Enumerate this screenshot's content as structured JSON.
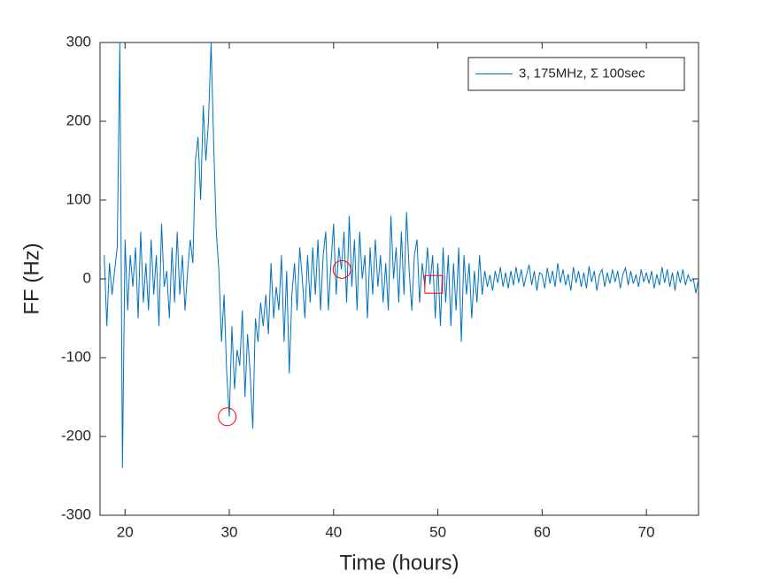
{
  "chart_data": {
    "type": "line",
    "xlabel": "Time (hours)",
    "ylabel": "FF (Hz)",
    "xlim": [
      17.6,
      75
    ],
    "ylim": [
      -300,
      300
    ],
    "xticks": [
      20,
      30,
      40,
      50,
      60,
      70
    ],
    "yticks": [
      -300,
      -200,
      -100,
      0,
      100,
      200,
      300
    ],
    "legend": "upper right",
    "x": [
      18,
      18.25,
      18.5,
      18.75,
      19,
      19.25,
      19.5,
      19.75,
      20,
      20.25,
      20.5,
      20.75,
      21,
      21.25,
      21.5,
      21.75,
      22,
      22.25,
      22.5,
      22.75,
      23,
      23.25,
      23.5,
      23.75,
      24,
      24.25,
      24.5,
      24.75,
      25,
      25.25,
      25.5,
      25.75,
      26,
      26.25,
      26.5,
      26.75,
      27,
      27.25,
      27.5,
      27.75,
      28,
      28.25,
      28.5,
      28.75,
      29,
      29.25,
      29.5,
      29.75,
      30,
      30.25,
      30.5,
      30.75,
      31,
      31.25,
      31.5,
      31.75,
      32,
      32.25,
      32.5,
      32.75,
      33,
      33.25,
      33.5,
      33.75,
      34,
      34.25,
      34.5,
      34.75,
      35,
      35.25,
      35.5,
      35.75,
      36,
      36.25,
      36.5,
      36.75,
      37,
      37.25,
      37.5,
      37.75,
      38,
      38.25,
      38.5,
      38.75,
      39,
      39.25,
      39.5,
      39.75,
      40,
      40.25,
      40.5,
      40.75,
      41,
      41.25,
      41.5,
      41.75,
      42,
      42.25,
      42.5,
      42.75,
      43,
      43.25,
      43.5,
      43.75,
      44,
      44.25,
      44.5,
      44.75,
      45,
      45.25,
      45.5,
      45.75,
      46,
      46.25,
      46.5,
      46.75,
      47,
      47.25,
      47.5,
      47.75,
      48,
      48.25,
      48.5,
      48.75,
      49,
      49.25,
      49.5,
      49.75,
      50,
      50.25,
      50.5,
      50.75,
      51,
      51.25,
      51.5,
      51.75,
      52,
      52.25,
      52.5,
      52.75,
      53,
      53.25,
      53.5,
      53.75,
      54,
      54.25,
      54.5,
      54.75,
      55,
      55.25,
      55.5,
      55.75,
      56,
      56.25,
      56.5,
      56.75,
      57,
      57.25,
      57.5,
      57.75,
      58,
      58.25,
      58.5,
      58.75,
      59,
      59.25,
      59.5,
      59.75,
      60,
      60.25,
      60.5,
      60.75,
      61,
      61.25,
      61.5,
      61.75,
      62,
      62.25,
      62.5,
      62.75,
      63,
      63.25,
      63.5,
      63.75,
      64,
      64.25,
      64.5,
      64.75,
      65,
      65.25,
      65.5,
      65.75,
      66,
      66.25,
      66.5,
      66.75,
      67,
      67.25,
      67.5,
      67.75,
      68,
      68.25,
      68.5,
      68.75,
      69,
      69.25,
      69.5,
      69.75,
      70,
      70.25,
      70.5,
      70.75,
      71,
      71.25,
      71.5,
      71.75,
      72,
      72.25,
      72.5,
      72.75,
      73,
      73.25,
      73.5,
      73.75,
      74,
      74.25,
      74.5,
      74.75,
      75
    ],
    "series": [
      {
        "name": "3, 175MHz, Σ 100sec",
        "color": "#0072bd",
        "values": [
          30,
          -60,
          20,
          -20,
          10,
          40,
          300,
          -240,
          50,
          -40,
          30,
          -10,
          40,
          -50,
          60,
          -30,
          20,
          -40,
          50,
          -20,
          30,
          -60,
          70,
          -10,
          10,
          -50,
          40,
          -30,
          60,
          -20,
          30,
          -40,
          10,
          50,
          20,
          150,
          180,
          100,
          220,
          150,
          200,
          300,
          170,
          60,
          10,
          -80,
          -20,
          -120,
          -175,
          -60,
          -140,
          -90,
          -110,
          -40,
          -150,
          -70,
          -120,
          -190,
          -50,
          -80,
          -30,
          -60,
          -20,
          -70,
          20,
          -50,
          -10,
          -40,
          30,
          -80,
          10,
          -120,
          -20,
          20,
          -40,
          40,
          0,
          -50,
          30,
          -30,
          40,
          -20,
          50,
          -40,
          30,
          60,
          -40,
          20,
          70,
          -20,
          40,
          12,
          60,
          -30,
          80,
          -10,
          50,
          -40,
          60,
          0,
          30,
          -50,
          40,
          -20,
          50,
          -10,
          30,
          -30,
          20,
          -40,
          80,
          0,
          40,
          -30,
          60,
          -20,
          85,
          10,
          -40,
          30,
          50,
          -30,
          20,
          -10,
          40,
          -7,
          30,
          -50,
          20,
          -60,
          40,
          -30,
          30,
          -60,
          20,
          -40,
          40,
          -80,
          30,
          -20,
          20,
          -50,
          10,
          -30,
          30,
          -20,
          10,
          -10,
          5,
          -15,
          10,
          -5,
          15,
          -10,
          8,
          -12,
          10,
          -8,
          15,
          -5,
          12,
          -10,
          5,
          18,
          -8,
          10,
          -15,
          8,
          5,
          -12,
          14,
          -6,
          10,
          -10,
          20,
          -5,
          12,
          -8,
          6,
          -15,
          15,
          -5,
          10,
          -10,
          8,
          -12,
          16,
          -4,
          10,
          -15,
          5,
          12,
          -10,
          8,
          -6,
          12,
          -4,
          10,
          -12,
          6,
          14,
          -8,
          10,
          -6,
          5,
          -10,
          12,
          -4,
          8,
          -6,
          10,
          -12,
          6,
          -8,
          15,
          -5,
          12,
          -10,
          8,
          -15,
          10,
          -5,
          12,
          -8,
          5,
          -3,
          0,
          -18,
          0
        ]
      }
    ],
    "markers": [
      {
        "x": 29.8,
        "y": -175,
        "shape": "circle",
        "color": "#ff0000"
      },
      {
        "x": 40.8,
        "y": 12,
        "shape": "circle",
        "color": "#ff0000"
      },
      {
        "x": 49.6,
        "y": -7,
        "shape": "square",
        "color": "#ff0000"
      }
    ]
  }
}
